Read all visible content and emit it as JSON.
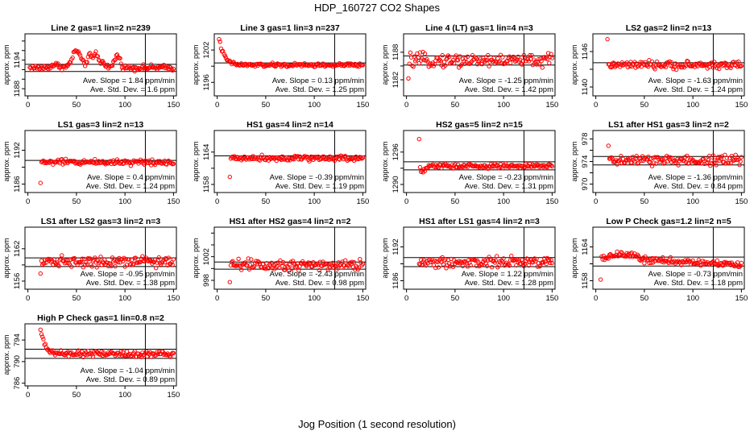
{
  "figure": {
    "title": "HDP_160727  CO2 Shapes",
    "xlabel": "Jog Position (1 second resolution)",
    "ylabel": "approx. ppm",
    "slope_prefix": "Ave. Slope =",
    "slope_unit": "ppm/min",
    "std_prefix": "Ave. Std. Dev. =",
    "std_unit": "ppm"
  },
  "chart_data": [
    {
      "type": "scatter",
      "title": "Line 2 gas=1 lin=2 n=239",
      "xlim": [
        -3,
        153
      ],
      "ylim": [
        1186.5,
        1199.5
      ],
      "yticks": [
        1188,
        1190,
        1192,
        1194,
        1196,
        1198
      ],
      "ytick_labels": [
        "1188",
        "",
        "",
        "1194",
        "",
        ""
      ],
      "xticks": [
        0,
        50,
        100,
        150
      ],
      "hlines": [
        1193.1,
        1191.6
      ],
      "vline": 121,
      "slope": "1.84",
      "stddev": "1.6",
      "profile": "peaky",
      "baseline": 1192.4,
      "noise": 0.4
    },
    {
      "type": "scatter",
      "title": "Line 3 gas=1 lin=3 n=237",
      "xlim": [
        -3,
        153
      ],
      "ylim": [
        1193.5,
        1205
      ],
      "yticks": [
        1196,
        1199,
        1202
      ],
      "ytick_labels": [
        "1196",
        "",
        "1202"
      ],
      "xticks": [
        0,
        50,
        100,
        150
      ],
      "hlines": [
        1199.6
      ],
      "vline": 121,
      "slope": "0.13",
      "stddev": "1.25",
      "profile": "decay",
      "baseline": 1199.2,
      "start": 1204.2,
      "noise": 0.25
    },
    {
      "type": "scatter",
      "title": "Line 4 (LT) gas=1 lin=4 n=3",
      "xlim": [
        -3,
        153
      ],
      "ylim": [
        1178.5,
        1192
      ],
      "yticks": [
        1182,
        1185,
        1188
      ],
      "ytick_labels": [
        "1182",
        "",
        "1188"
      ],
      "xticks": [
        0,
        50,
        100,
        150
      ],
      "hlines": [
        1187.2,
        1185.2
      ],
      "vline": 121,
      "slope": "-1.25",
      "stddev": "1.42",
      "profile": "noisy",
      "baseline": 1186.2,
      "noise": 1.0,
      "first": 1182.3
    },
    {
      "type": "scatter",
      "title": "LS2 gas=2 lin=2 n=13",
      "xlim": [
        -3,
        153
      ],
      "ylim": [
        1138.5,
        1149
      ],
      "yticks": [
        1140,
        1143,
        1146
      ],
      "ytick_labels": [
        "1140",
        "",
        "1146"
      ],
      "xticks": [
        0,
        50,
        100,
        150
      ],
      "hlines": [
        1144.1
      ],
      "vline": 121,
      "slope": "-1.63",
      "stddev": "1.24",
      "profile": "noisy",
      "baseline": 1143.7,
      "noise": 0.45,
      "start_x": 12,
      "first": 1148.1
    },
    {
      "type": "scatter",
      "title": "LS1 gas=3 lin=2 n=13",
      "xlim": [
        -3,
        153
      ],
      "ylim": [
        1184.5,
        1195.5
      ],
      "yticks": [
        1186,
        1189,
        1192
      ],
      "ytick_labels": [
        "1186",
        "",
        "1192"
      ],
      "xticks": [
        0,
        50,
        100,
        150
      ],
      "hlines": [
        1190.2
      ],
      "vline": 121,
      "slope": "0.4",
      "stddev": "1.24",
      "profile": "noisy",
      "baseline": 1189.9,
      "noise": 0.35,
      "start_x": 13,
      "first": 1186.2
    },
    {
      "type": "scatter",
      "title": "HS1 gas=4 lin=2 n=14",
      "xlim": [
        -3,
        153
      ],
      "ylim": [
        1156.5,
        1168
      ],
      "yticks": [
        1158,
        1161,
        1164
      ],
      "ytick_labels": [
        "1158",
        "",
        "1164"
      ],
      "xticks": [
        0,
        50,
        100,
        150
      ],
      "hlines": [
        1163.3
      ],
      "vline": 121,
      "slope": "-0.39",
      "stddev": "1.19",
      "profile": "noisy",
      "baseline": 1162.9,
      "noise": 0.35,
      "start_x": 13,
      "first": 1159.4
    },
    {
      "type": "scatter",
      "title": "HS2 gas=5 lin=2 n=15",
      "xlim": [
        -3,
        153
      ],
      "ylim": [
        1288.5,
        1300
      ],
      "yticks": [
        1290,
        1293,
        1296
      ],
      "ytick_labels": [
        "1290",
        "",
        "1296"
      ],
      "xticks": [
        0,
        50,
        100,
        150
      ],
      "hlines": [
        1294.2,
        1292.7
      ],
      "vline": 121,
      "slope": "-0.23",
      "stddev": "1.31",
      "profile": "dipstart",
      "baseline": 1293.4,
      "noise": 0.3,
      "start_x": 13,
      "first": 1298.4
    },
    {
      "type": "scatter",
      "title": "LS1 after HS1 gas=3 lin=2 n=2",
      "xlim": [
        -3,
        153
      ],
      "ylim": [
        968.5,
        979.5
      ],
      "yticks": [
        970,
        972,
        974,
        976,
        978
      ],
      "ytick_labels": [
        "970",
        "",
        "974",
        "",
        "978"
      ],
      "xticks": [
        0,
        50,
        100,
        150
      ],
      "hlines": [
        974.9,
        973.4
      ],
      "vline": 121,
      "slope": "-1.36",
      "stddev": "0.84",
      "profile": "noisy",
      "baseline": 974.2,
      "noise": 0.7,
      "start_x": 13,
      "first": 976.8
    },
    {
      "type": "scatter",
      "title": "LS1 after LS2 gas=3 lin=2 n=3",
      "xlim": [
        -3,
        153
      ],
      "ylim": [
        1154.5,
        1166
      ],
      "yticks": [
        1156,
        1159,
        1162
      ],
      "ytick_labels": [
        "1156",
        "",
        "1162"
      ],
      "xticks": [
        0,
        50,
        100,
        150
      ],
      "hlines": [
        1160.3,
        1158.7
      ],
      "vline": 121,
      "slope": "-0.95",
      "stddev": "1.38",
      "profile": "noisy",
      "baseline": 1159.7,
      "noise": 0.7,
      "start_x": 13,
      "first": 1157.4
    },
    {
      "type": "scatter",
      "title": "HS1 after HS2 gas=4 lin=2 n=2",
      "xlim": [
        -3,
        153
      ],
      "ylim": [
        996.5,
        1007
      ],
      "yticks": [
        998,
        1000,
        1002,
        1004,
        1006
      ],
      "ytick_labels": [
        "998",
        "",
        "1002",
        "",
        ""
      ],
      "xticks": [
        0,
        50,
        100,
        150
      ],
      "hlines": [
        1001.1,
        999.9
      ],
      "vline": 121,
      "slope": "-2.43",
      "stddev": "0.98",
      "profile": "noisy",
      "baseline": 1000.7,
      "noise": 0.7,
      "start_x": 13,
      "first": 997.7
    },
    {
      "type": "scatter",
      "title": "HS1 after LS1 gas=4 lin=2 n=3",
      "xlim": [
        -3,
        153
      ],
      "ylim": [
        1184.5,
        1195.5
      ],
      "yticks": [
        1186,
        1189,
        1192
      ],
      "ytick_labels": [
        "1186",
        "",
        "1192"
      ],
      "xticks": [
        0,
        50,
        100,
        150
      ],
      "hlines": [
        1190.1,
        1188.5
      ],
      "vline": 121,
      "slope": "1.22",
      "stddev": "1.28",
      "profile": "noisy",
      "baseline": 1189.3,
      "noise": 0.7,
      "start_x": 13
    },
    {
      "type": "scatter",
      "title": "Low P Check gas=1.2 lin=2 n=5",
      "xlim": [
        -3,
        153
      ],
      "ylim": [
        1156.5,
        1167.5
      ],
      "yticks": [
        1158,
        1161,
        1164
      ],
      "ytick_labels": [
        "1158",
        "",
        "1164"
      ],
      "xticks": [
        0,
        50,
        100,
        150
      ],
      "hlines": [
        1162.2,
        1160.6
      ],
      "vline": 121,
      "slope": "-0.73",
      "stddev": "1.18",
      "profile": "humpdown",
      "baseline": 1161.6,
      "noise": 0.4,
      "start_x": 5,
      "first": 1158.2
    },
    {
      "type": "scatter",
      "title": "High P Check gas=1 lin=0.8 n=2",
      "xlim": [
        -3,
        153
      ],
      "ylim": [
        785.5,
        797
      ],
      "yticks": [
        786,
        790,
        794
      ],
      "ytick_labels": [
        "786",
        "790",
        "794"
      ],
      "xticks": [
        0,
        50,
        100,
        150
      ],
      "hlines": [
        792.3,
        790.6
      ],
      "vline": 121,
      "slope": "-1.04",
      "stddev": "0.89",
      "profile": "decay",
      "baseline": 791.4,
      "start": 795.8,
      "noise": 0.4,
      "start_x": 13
    }
  ]
}
